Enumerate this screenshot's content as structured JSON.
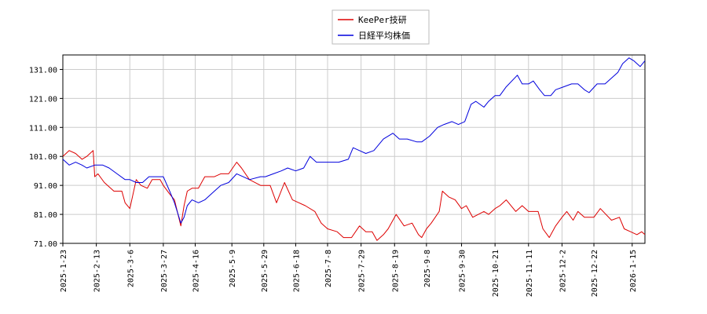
{
  "chart_data": {
    "type": "line",
    "title": "",
    "xlabel": "",
    "ylabel": "",
    "ylim": [
      71.0,
      136.0
    ],
    "y_ticks": [
      "71.00",
      "81.00",
      "91.00",
      "101.00",
      "111.00",
      "121.00",
      "131.00"
    ],
    "x_range": [
      "2025-01-23",
      "2026-01-23"
    ],
    "x_ticks": [
      "2025-1-23",
      "2025-2-13",
      "2025-3-6",
      "2025-3-27",
      "2025-4-16",
      "2025-5-9",
      "2025-5-29",
      "2025-6-18",
      "2025-7-8",
      "2025-7-29",
      "2025-8-19",
      "2025-9-8",
      "2025-9-30",
      "2025-10-21",
      "2025-11-11",
      "2025-12-2",
      "2025-12-22",
      "2026-1-15"
    ],
    "grid": true,
    "legend_placement": "top-center",
    "series": [
      {
        "name": "KeePer技研",
        "color": "#dd0000",
        "points": [
          [
            "2025-01-23",
            101
          ],
          [
            "2025-01-27",
            103
          ],
          [
            "2025-01-31",
            102
          ],
          [
            "2025-02-04",
            100
          ],
          [
            "2025-02-07",
            101
          ],
          [
            "2025-02-11",
            103
          ],
          [
            "2025-02-12",
            94
          ],
          [
            "2025-02-14",
            95
          ],
          [
            "2025-02-18",
            92
          ],
          [
            "2025-02-24",
            89
          ],
          [
            "2025-03-01",
            89
          ],
          [
            "2025-03-03",
            85
          ],
          [
            "2025-03-06",
            83
          ],
          [
            "2025-03-10",
            93
          ],
          [
            "2025-03-13",
            91
          ],
          [
            "2025-03-17",
            90
          ],
          [
            "2025-03-20",
            93
          ],
          [
            "2025-03-25",
            93
          ],
          [
            "2025-03-27",
            91
          ],
          [
            "2025-03-31",
            88
          ],
          [
            "2025-04-03",
            86
          ],
          [
            "2025-04-07",
            77
          ],
          [
            "2025-04-09",
            84
          ],
          [
            "2025-04-11",
            89
          ],
          [
            "2025-04-14",
            90
          ],
          [
            "2025-04-18",
            90
          ],
          [
            "2025-04-22",
            94
          ],
          [
            "2025-04-28",
            94
          ],
          [
            "2025-05-02",
            95
          ],
          [
            "2025-05-07",
            95
          ],
          [
            "2025-05-12",
            99
          ],
          [
            "2025-05-15",
            97
          ],
          [
            "2025-05-20",
            93
          ],
          [
            "2025-05-27",
            91
          ],
          [
            "2025-06-02",
            91
          ],
          [
            "2025-06-06",
            85
          ],
          [
            "2025-06-11",
            92
          ],
          [
            "2025-06-16",
            86
          ],
          [
            "2025-06-20",
            85
          ],
          [
            "2025-06-24",
            84
          ],
          [
            "2025-06-30",
            82
          ],
          [
            "2025-07-04",
            78
          ],
          [
            "2025-07-08",
            76
          ],
          [
            "2025-07-14",
            75
          ],
          [
            "2025-07-18",
            73
          ],
          [
            "2025-07-23",
            73
          ],
          [
            "2025-07-28",
            77
          ],
          [
            "2025-08-01",
            75
          ],
          [
            "2025-08-05",
            75
          ],
          [
            "2025-08-08",
            72
          ],
          [
            "2025-08-12",
            74
          ],
          [
            "2025-08-15",
            76
          ],
          [
            "2025-08-20",
            81
          ],
          [
            "2025-08-25",
            77
          ],
          [
            "2025-08-30",
            78
          ],
          [
            "2025-09-03",
            74
          ],
          [
            "2025-09-05",
            73
          ],
          [
            "2025-09-08",
            76
          ],
          [
            "2025-09-11",
            78
          ],
          [
            "2025-09-16",
            82
          ],
          [
            "2025-09-18",
            89
          ],
          [
            "2025-09-22",
            87
          ],
          [
            "2025-09-26",
            86
          ],
          [
            "2025-09-30",
            83
          ],
          [
            "2025-10-03",
            84
          ],
          [
            "2025-10-07",
            80
          ],
          [
            "2025-10-14",
            82
          ],
          [
            "2025-10-17",
            81
          ],
          [
            "2025-10-21",
            83
          ],
          [
            "2025-10-24",
            84
          ],
          [
            "2025-10-28",
            86
          ],
          [
            "2025-11-03",
            82
          ],
          [
            "2025-11-07",
            84
          ],
          [
            "2025-11-11",
            82
          ],
          [
            "2025-11-17",
            82
          ],
          [
            "2025-11-20",
            76
          ],
          [
            "2025-11-24",
            73
          ],
          [
            "2025-11-28",
            77
          ],
          [
            "2025-12-02",
            80
          ],
          [
            "2025-12-05",
            82
          ],
          [
            "2025-12-09",
            79
          ],
          [
            "2025-12-12",
            82
          ],
          [
            "2025-12-16",
            80
          ],
          [
            "2025-12-22",
            80
          ],
          [
            "2025-12-26",
            83
          ],
          [
            "2026-01-02",
            79
          ],
          [
            "2026-01-07",
            80
          ],
          [
            "2026-01-10",
            76
          ],
          [
            "2026-01-14",
            75
          ],
          [
            "2026-01-18",
            74
          ],
          [
            "2026-01-21",
            75
          ],
          [
            "2026-01-23",
            74
          ]
        ]
      },
      {
        "name": "日経平均株価",
        "color": "#0000dd",
        "points": [
          [
            "2025-01-23",
            100
          ],
          [
            "2025-01-27",
            98
          ],
          [
            "2025-01-31",
            99
          ],
          [
            "2025-02-04",
            98
          ],
          [
            "2025-02-07",
            97
          ],
          [
            "2025-02-12",
            98
          ],
          [
            "2025-02-17",
            98
          ],
          [
            "2025-02-21",
            97
          ],
          [
            "2025-02-26",
            95
          ],
          [
            "2025-03-03",
            93
          ],
          [
            "2025-03-06",
            93
          ],
          [
            "2025-03-10",
            92
          ],
          [
            "2025-03-14",
            92
          ],
          [
            "2025-03-18",
            94
          ],
          [
            "2025-03-24",
            94
          ],
          [
            "2025-03-27",
            94
          ],
          [
            "2025-03-31",
            89
          ],
          [
            "2025-04-03",
            85
          ],
          [
            "2025-04-07",
            78
          ],
          [
            "2025-04-09",
            80
          ],
          [
            "2025-04-11",
            84
          ],
          [
            "2025-04-14",
            86
          ],
          [
            "2025-04-18",
            85
          ],
          [
            "2025-04-22",
            86
          ],
          [
            "2025-04-28",
            89
          ],
          [
            "2025-05-02",
            91
          ],
          [
            "2025-05-07",
            92
          ],
          [
            "2025-05-12",
            95
          ],
          [
            "2025-05-16",
            94
          ],
          [
            "2025-05-20",
            93
          ],
          [
            "2025-05-27",
            94
          ],
          [
            "2025-05-30",
            94
          ],
          [
            "2025-06-04",
            95
          ],
          [
            "2025-06-09",
            96
          ],
          [
            "2025-06-13",
            97
          ],
          [
            "2025-06-18",
            96
          ],
          [
            "2025-06-23",
            97
          ],
          [
            "2025-06-27",
            101
          ],
          [
            "2025-07-01",
            99
          ],
          [
            "2025-07-07",
            99
          ],
          [
            "2025-07-11",
            99
          ],
          [
            "2025-07-15",
            99
          ],
          [
            "2025-07-21",
            100
          ],
          [
            "2025-07-24",
            104
          ],
          [
            "2025-07-28",
            103
          ],
          [
            "2025-08-01",
            102
          ],
          [
            "2025-08-06",
            103
          ],
          [
            "2025-08-12",
            107
          ],
          [
            "2025-08-18",
            109
          ],
          [
            "2025-08-22",
            107
          ],
          [
            "2025-08-27",
            107
          ],
          [
            "2025-09-02",
            106
          ],
          [
            "2025-09-05",
            106
          ],
          [
            "2025-09-10",
            108
          ],
          [
            "2025-09-15",
            111
          ],
          [
            "2025-09-19",
            112
          ],
          [
            "2025-09-24",
            113
          ],
          [
            "2025-09-28",
            112
          ],
          [
            "2025-10-02",
            113
          ],
          [
            "2025-10-06",
            119
          ],
          [
            "2025-10-09",
            120
          ],
          [
            "2025-10-14",
            118
          ],
          [
            "2025-10-17",
            120
          ],
          [
            "2025-10-21",
            122
          ],
          [
            "2025-10-24",
            122
          ],
          [
            "2025-10-28",
            125
          ],
          [
            "2025-11-04",
            129
          ],
          [
            "2025-11-07",
            126
          ],
          [
            "2025-11-11",
            126
          ],
          [
            "2025-11-14",
            127
          ],
          [
            "2025-11-18",
            124
          ],
          [
            "2025-11-21",
            122
          ],
          [
            "2025-11-25",
            122
          ],
          [
            "2025-11-28",
            124
          ],
          [
            "2025-12-03",
            125
          ],
          [
            "2025-12-08",
            126
          ],
          [
            "2025-12-12",
            126
          ],
          [
            "2025-12-16",
            124
          ],
          [
            "2025-12-19",
            123
          ],
          [
            "2025-12-24",
            126
          ],
          [
            "2025-12-29",
            126
          ],
          [
            "2026-01-02",
            128
          ],
          [
            "2026-01-06",
            130
          ],
          [
            "2026-01-09",
            133
          ],
          [
            "2026-01-13",
            135
          ],
          [
            "2026-01-16",
            134
          ],
          [
            "2026-01-20",
            132
          ],
          [
            "2026-01-23",
            134
          ]
        ]
      }
    ]
  }
}
